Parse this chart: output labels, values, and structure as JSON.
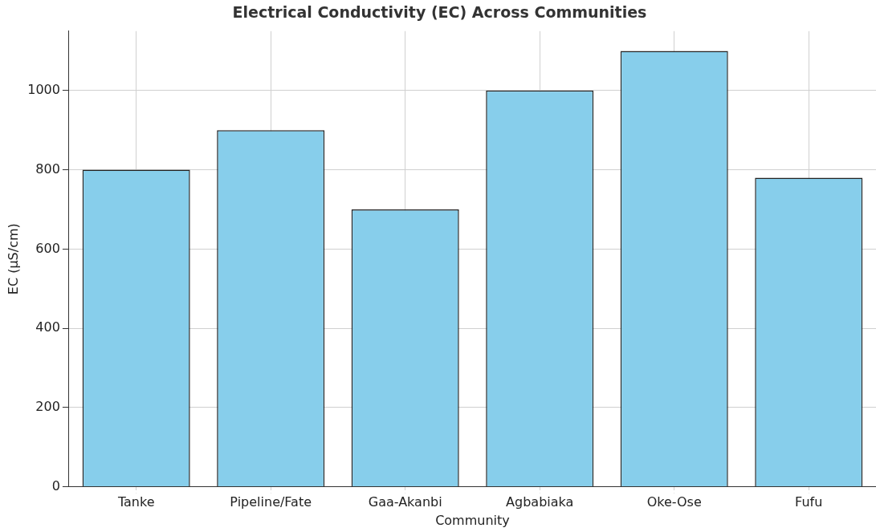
{
  "chart_data": {
    "type": "bar",
    "title": "Electrical Conductivity (EC) Across Communities",
    "xlabel": "Community",
    "ylabel": "EC (µS/cm)",
    "categories": [
      "Tanke",
      "Pipeline/Fate",
      "Gaa-Akanbi",
      "Agbabiaka",
      "Oke-Ose",
      "Fufu"
    ],
    "values": [
      800,
      900,
      700,
      1000,
      1100,
      780
    ],
    "color": "#87ceeb",
    "ylim": [
      0,
      1150
    ],
    "yticks": [
      0,
      200,
      400,
      600,
      800,
      1000
    ],
    "grid": true
  }
}
